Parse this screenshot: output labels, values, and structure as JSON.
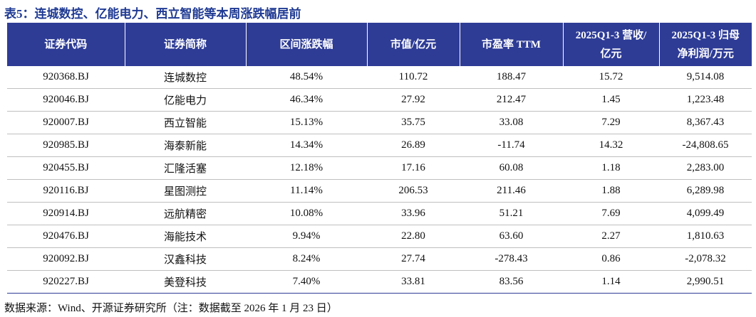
{
  "title": "表5：连城数控、亿能电力、西立智能等本周涨跌幅居前",
  "table": {
    "header": [
      [
        "证券代码"
      ],
      [
        "证券简称"
      ],
      [
        "区间涨跌幅"
      ],
      [
        "市值/亿元"
      ],
      [
        "市盈率 TTM"
      ],
      [
        "2025Q1-3 营收/",
        "亿元"
      ],
      [
        "2025Q1-3 归母",
        "净利润/万元"
      ]
    ],
    "rows": [
      [
        "920368.BJ",
        "连城数控",
        "48.54%",
        "110.72",
        "188.47",
        "15.72",
        "9,514.08"
      ],
      [
        "920046.BJ",
        "亿能电力",
        "46.34%",
        "27.92",
        "212.47",
        "1.45",
        "1,223.48"
      ],
      [
        "920007.BJ",
        "西立智能",
        "15.13%",
        "35.75",
        "33.08",
        "7.29",
        "8,367.43"
      ],
      [
        "920985.BJ",
        "海泰新能",
        "14.34%",
        "26.89",
        "-11.74",
        "14.32",
        "-24,808.65"
      ],
      [
        "920455.BJ",
        "汇隆活塞",
        "12.18%",
        "17.16",
        "60.08",
        "1.18",
        "2,283.00"
      ],
      [
        "920116.BJ",
        "星图测控",
        "11.14%",
        "206.53",
        "211.46",
        "1.88",
        "6,289.98"
      ],
      [
        "920914.BJ",
        "远航精密",
        "10.08%",
        "33.96",
        "51.21",
        "7.69",
        "4,099.49"
      ],
      [
        "920476.BJ",
        "海能技术",
        "9.94%",
        "22.80",
        "63.60",
        "2.27",
        "1,810.63"
      ],
      [
        "920092.BJ",
        "汉鑫科技",
        "8.24%",
        "27.74",
        "-278.43",
        "0.86",
        "-2,078.32"
      ],
      [
        "920227.BJ",
        "美登科技",
        "7.40%",
        "33.81",
        "83.56",
        "1.14",
        "2,990.51"
      ]
    ]
  },
  "source": "数据来源：Wind、开源证券研究所（注：数据截至 2026 年 1 月 23 日）"
}
